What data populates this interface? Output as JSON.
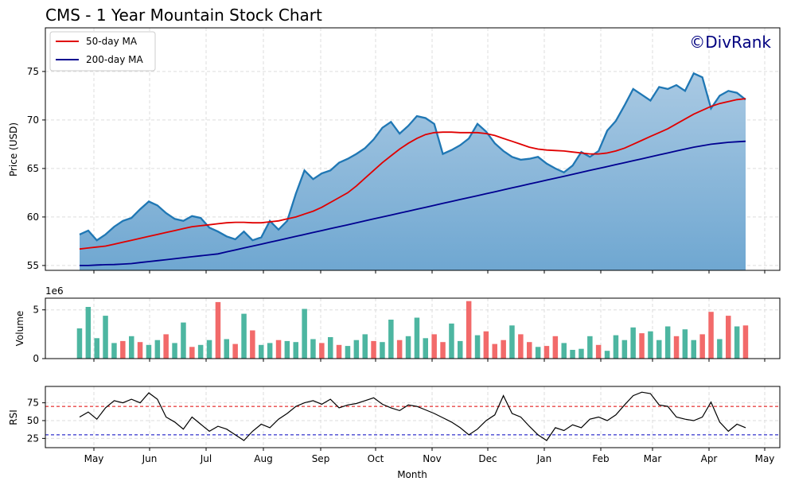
{
  "title": "CMS - 1 Year Mountain Stock Chart",
  "watermark": "©DivRank",
  "colors": {
    "price_line": "#1f77b4",
    "fill_top": "#a9c9e3",
    "fill_bottom": "#6fa7d1",
    "ma50": "#e00000",
    "ma200": "#000090",
    "vol_up": "#4db6a1",
    "vol_down": "#f26a6a",
    "rsi_line": "#000000",
    "rsi_overbought": "#e00000",
    "rsi_oversold": "#0000c0",
    "watermark": "#000080",
    "grid": "#dddddd"
  },
  "legend": {
    "ma50": "50-day MA",
    "ma200": "200-day MA"
  },
  "axes": {
    "price_ylabel": "Price (USD)",
    "volume_ylabel": "Volume",
    "volume_scale": "1e6",
    "rsi_ylabel": "RSI",
    "xlabel": "Month"
  },
  "chart_data": {
    "type": "line",
    "x_months": [
      "May",
      "Jun",
      "Jul",
      "Aug",
      "Sep",
      "Oct",
      "Nov",
      "Dec",
      "Jan",
      "Feb",
      "Mar",
      "Apr",
      "May"
    ],
    "price": {
      "ylim": [
        54.5,
        79.5
      ],
      "yticks": [
        "55",
        "60",
        "65",
        "70",
        "75"
      ],
      "close": [
        58.2,
        58.6,
        57.6,
        58.2,
        59.0,
        59.6,
        59.9,
        60.8,
        61.6,
        61.2,
        60.4,
        59.8,
        59.6,
        60.1,
        59.9,
        58.9,
        58.5,
        58.0,
        57.7,
        58.5,
        57.6,
        57.9,
        59.6,
        58.7,
        59.6,
        62.4,
        64.8,
        63.9,
        64.5,
        64.8,
        65.6,
        66.0,
        66.5,
        67.1,
        68.0,
        69.2,
        69.8,
        68.6,
        69.4,
        70.4,
        70.2,
        69.6,
        66.5,
        66.9,
        67.4,
        68.1,
        69.6,
        68.8,
        67.6,
        66.8,
        66.2,
        65.9,
        66.0,
        66.2,
        65.5,
        65.0,
        64.6,
        65.3,
        66.7,
        66.2,
        66.8,
        68.9,
        69.9,
        71.5,
        73.2,
        72.6,
        72.0,
        73.4,
        73.2,
        73.6,
        73.0,
        74.8,
        74.4,
        71.2,
        72.5,
        73.0,
        72.8,
        72.1
      ],
      "ma50": [
        56.7,
        56.8,
        56.9,
        57.0,
        57.2,
        57.4,
        57.6,
        57.8,
        58.0,
        58.2,
        58.4,
        58.6,
        58.8,
        59.0,
        59.1,
        59.2,
        59.3,
        59.4,
        59.45,
        59.45,
        59.4,
        59.4,
        59.5,
        59.6,
        59.8,
        60.0,
        60.3,
        60.6,
        61.0,
        61.5,
        62.0,
        62.5,
        63.2,
        64.0,
        64.8,
        65.6,
        66.3,
        67.0,
        67.6,
        68.1,
        68.5,
        68.7,
        68.75,
        68.75,
        68.7,
        68.7,
        68.7,
        68.6,
        68.4,
        68.1,
        67.8,
        67.5,
        67.2,
        67.0,
        66.9,
        66.85,
        66.8,
        66.7,
        66.6,
        66.5,
        66.5,
        66.6,
        66.8,
        67.1,
        67.5,
        67.9,
        68.3,
        68.7,
        69.1,
        69.6,
        70.1,
        70.6,
        71.0,
        71.4,
        71.7,
        71.9,
        72.1,
        72.2
      ],
      "ma200": [
        55.0,
        55.0,
        55.05,
        55.08,
        55.1,
        55.15,
        55.2,
        55.3,
        55.4,
        55.5,
        55.6,
        55.7,
        55.8,
        55.9,
        56.0,
        56.1,
        56.2,
        56.4,
        56.6,
        56.8,
        57.0,
        57.2,
        57.4,
        57.6,
        57.8,
        58.0,
        58.2,
        58.4,
        58.6,
        58.8,
        59.0,
        59.2,
        59.4,
        59.6,
        59.8,
        60.0,
        60.2,
        60.4,
        60.6,
        60.8,
        61.0,
        61.2,
        61.4,
        61.6,
        61.8,
        62.0,
        62.2,
        62.4,
        62.6,
        62.8,
        63.0,
        63.2,
        63.4,
        63.6,
        63.8,
        64.0,
        64.2,
        64.4,
        64.6,
        64.8,
        65.0,
        65.2,
        65.4,
        65.6,
        65.8,
        66.0,
        66.2,
        66.4,
        66.6,
        66.8,
        67.0,
        67.2,
        67.35,
        67.5,
        67.6,
        67.7,
        67.75,
        67.8
      ]
    },
    "volume": {
      "ylim": [
        0,
        6.2
      ],
      "yticks": [
        "0",
        "5"
      ],
      "values": [
        3.1,
        5.3,
        2.1,
        4.4,
        1.6,
        1.8,
        2.3,
        1.7,
        1.4,
        1.9,
        2.5,
        1.6,
        3.7,
        1.2,
        1.4,
        1.9,
        5.8,
        2.0,
        1.5,
        4.6,
        2.9,
        1.4,
        1.6,
        1.9,
        1.8,
        1.7,
        5.1,
        2.0,
        1.6,
        2.2,
        1.4,
        1.3,
        1.9,
        2.5,
        1.8,
        1.7,
        4.0,
        1.9,
        2.3,
        4.2,
        2.1,
        2.5,
        1.7,
        3.6,
        1.8,
        5.9,
        2.4,
        2.8,
        1.5,
        1.9,
        3.4,
        2.5,
        1.7,
        1.2,
        1.3,
        2.3,
        1.6,
        0.9,
        1.0,
        2.3,
        1.4,
        0.8,
        2.4,
        1.9,
        3.2,
        2.6,
        2.8,
        1.9,
        3.3,
        2.3,
        3.0,
        1.9,
        2.5,
        4.8,
        2.0,
        4.4,
        3.3,
        3.4
      ],
      "up": [
        true,
        true,
        true,
        true,
        true,
        false,
        true,
        false,
        true,
        true,
        false,
        true,
        true,
        false,
        true,
        true,
        false,
        true,
        false,
        true,
        false,
        true,
        true,
        false,
        true,
        true,
        true,
        true,
        false,
        true,
        false,
        true,
        true,
        true,
        false,
        true,
        true,
        false,
        true,
        true,
        true,
        false,
        false,
        true,
        true,
        false,
        true,
        false,
        false,
        false,
        true,
        false,
        false,
        true,
        false,
        false,
        true,
        true,
        true,
        true,
        false,
        true,
        true,
        true,
        true,
        false,
        true,
        true,
        true,
        false,
        true,
        true,
        false,
        false,
        true,
        false,
        true,
        false
      ]
    },
    "rsi": {
      "ylim": [
        12,
        98
      ],
      "yticks": [
        "25",
        "50",
        "75"
      ],
      "overbought": 70,
      "oversold": 30,
      "values": [
        55,
        62,
        52,
        68,
        78,
        75,
        80,
        75,
        89,
        80,
        55,
        48,
        38,
        55,
        45,
        35,
        42,
        38,
        30,
        22,
        35,
        45,
        40,
        52,
        60,
        70,
        75,
        78,
        73,
        80,
        68,
        72,
        74,
        78,
        82,
        73,
        68,
        64,
        72,
        70,
        65,
        60,
        54,
        48,
        40,
        30,
        38,
        50,
        58,
        85,
        60,
        55,
        42,
        30,
        22,
        40,
        36,
        44,
        40,
        52,
        55,
        50,
        58,
        72,
        85,
        90,
        88,
        72,
        70,
        55,
        52,
        50,
        55,
        76,
        48,
        35,
        45,
        40
      ]
    }
  }
}
